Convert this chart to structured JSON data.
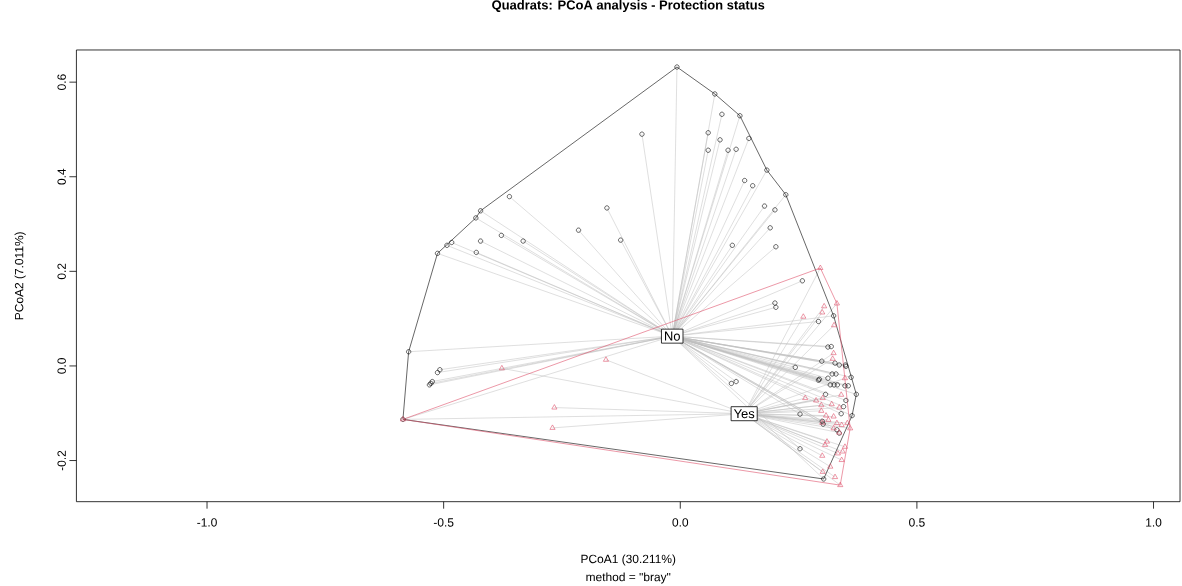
{
  "chart_data": {
    "type": "scatter",
    "title": "Quadrats: PCoA analysis - Protection status",
    "xlabel": "PCoA1 (30.211%)",
    "ylabel": "PCoA2 (7.011%)",
    "xlim": [
      -1.276,
      1.056
    ],
    "ylim": [
      -0.287,
      0.668
    ],
    "xticks": [
      {
        "value": -1.0,
        "label": "-1.0"
      },
      {
        "value": -0.5,
        "label": "-0.5"
      },
      {
        "value": 0,
        "label": "0.0"
      },
      {
        "value": 0.5,
        "label": "0.5"
      },
      {
        "value": 1.0,
        "label": "1.0"
      }
    ],
    "yticks": [
      {
        "value": -0.2,
        "label": "-0.2"
      },
      {
        "value": 0,
        "label": "0.0"
      },
      {
        "value": 0.2,
        "label": "0.2"
      },
      {
        "value": 0.4,
        "label": "0.4"
      },
      {
        "value": 0.6,
        "label": "0.6"
      }
    ],
    "series": [
      {
        "color": "#000000",
        "marker": "circle",
        "x": [
          -0.007,
          0.073,
          0.088,
          0.126,
          0.059,
          0.084,
          0.145,
          0.059,
          0.101,
          0.118,
          -0.081,
          0.183,
          0.136,
          0.153,
          0.223,
          0.178,
          0.2,
          0.19,
          0.11,
          0.202,
          -0.155,
          -0.126,
          -0.215,
          -0.361,
          -0.422,
          -0.432,
          -0.378,
          -0.332,
          -0.422,
          -0.431,
          -0.483,
          -0.493,
          -0.513,
          -0.574,
          0.258,
          0.2,
          0.202,
          0.292,
          0.243,
          -0.513,
          -0.508,
          -0.53,
          -0.527,
          -0.524,
          -0.586,
          0.108,
          0.118,
          0.292,
          0.253,
          0.253,
          0.324,
          0.312,
          0.319,
          0.299,
          0.327,
          0.336,
          0.349,
          0.35,
          0.321,
          0.329,
          0.361,
          0.294,
          0.312,
          0.317,
          0.325,
          0.332,
          0.348,
          0.355,
          0.372,
          0.307,
          0.35,
          0.345,
          0.34,
          0.363,
          0.3,
          0.302,
          0.331,
          0.336,
          0.303
        ],
        "values": [
          0.632,
          0.575,
          0.532,
          0.529,
          0.493,
          0.478,
          0.481,
          0.456,
          0.456,
          0.458,
          0.49,
          0.414,
          0.392,
          0.381,
          0.362,
          0.338,
          0.33,
          0.292,
          0.255,
          0.252,
          0.334,
          0.266,
          0.287,
          0.358,
          0.328,
          0.313,
          0.276,
          0.264,
          0.264,
          0.24,
          0.261,
          0.255,
          0.238,
          0.03,
          0.18,
          0.133,
          0.124,
          0.094,
          -0.003,
          -0.014,
          -0.008,
          -0.04,
          -0.037,
          -0.033,
          -0.113,
          -0.037,
          -0.033,
          -0.03,
          -0.102,
          -0.175,
          0.106,
          0.04,
          0.041,
          0.01,
          0.006,
          0.002,
          0.002,
          -0.001,
          -0.017,
          -0.017,
          -0.024,
          -0.028,
          -0.026,
          -0.04,
          -0.04,
          -0.04,
          -0.042,
          -0.042,
          -0.06,
          -0.06,
          -0.073,
          -0.086,
          -0.101,
          -0.105,
          -0.117,
          -0.123,
          -0.135,
          -0.142,
          -0.239
        ]
      },
      {
        "color": "#df536b",
        "marker": "triangle",
        "x": [
          -0.377,
          -0.157,
          -0.266,
          -0.27,
          -0.586,
          0.26,
          0.264,
          0.287,
          0.296,
          0.331,
          0.304,
          0.3,
          0.325,
          0.324,
          0.322,
          0.348,
          0.301,
          0.34,
          0.32,
          0.298,
          0.336,
          0.298,
          0.308,
          0.324,
          0.313,
          0.3,
          0.331,
          0.341,
          0.324,
          0.359,
          0.353,
          0.336,
          0.31,
          0.306,
          0.348,
          0.343,
          0.333,
          0.3,
          0.341,
          0.317,
          0.301,
          0.327,
          0.338
        ],
        "values": [
          -0.005,
          0.013,
          -0.088,
          -0.131,
          -0.113,
          0.104,
          -0.068,
          -0.073,
          0.207,
          0.132,
          0.126,
          0.113,
          0.086,
          0.027,
          0.015,
          -0.026,
          -0.068,
          -0.061,
          -0.081,
          -0.083,
          -0.088,
          -0.095,
          -0.105,
          -0.107,
          -0.114,
          -0.12,
          -0.121,
          -0.125,
          -0.132,
          -0.132,
          -0.121,
          -0.141,
          -0.16,
          -0.167,
          -0.171,
          -0.181,
          -0.185,
          -0.19,
          -0.199,
          -0.213,
          -0.224,
          -0.235,
          -0.252
        ]
      },
      {
        "type": "line",
        "color": "#000000",
        "x": [
          -0.586,
          -0.574,
          -0.513,
          -0.432,
          -0.422,
          -0.007,
          0.073,
          0.126,
          0.183,
          0.223,
          0.324,
          0.372
        ],
        "values": [
          -0.113,
          0.03,
          0.238,
          0.313,
          0.328,
          0.632,
          0.575,
          0.529,
          0.414,
          0.362,
          0.106,
          -0.06
        ]
      },
      {
        "type": "line",
        "color": "#000000",
        "x": [
          -0.586,
          0.303,
          0.363,
          0.372
        ],
        "values": [
          -0.113,
          -0.239,
          -0.105,
          -0.06
        ]
      },
      {
        "type": "line",
        "color": "#df536b",
        "x": [
          -0.586,
          0.296,
          0.331,
          0.359
        ],
        "values": [
          -0.113,
          0.207,
          0.132,
          -0.132
        ]
      },
      {
        "type": "line",
        "color": "#df536b",
        "x": [
          -0.586,
          0.338,
          0.359
        ],
        "values": [
          -0.113,
          -0.252,
          -0.132
        ]
      }
    ],
    "annotations": [
      {
        "text": "No",
        "x": -0.017,
        "y": 0.063
      },
      {
        "text": "Yes",
        "x": 0.135,
        "y": -0.101
      },
      "method = \"bray\""
    ]
  }
}
